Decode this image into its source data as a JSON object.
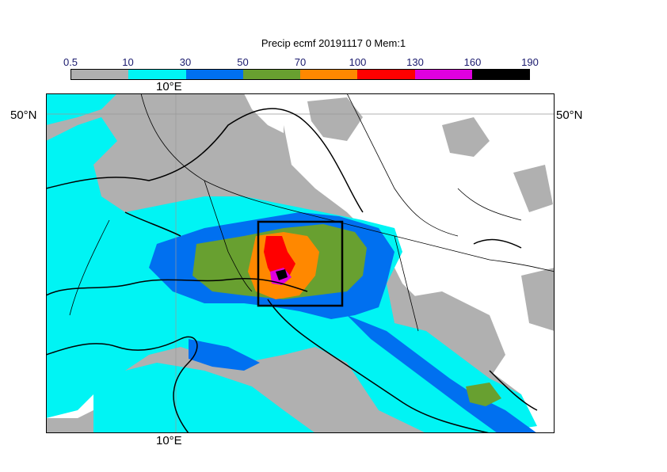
{
  "title": "Precip ecmf 20191117 0 Mem:1",
  "colorbar": {
    "ticks": [
      "0.5",
      "10",
      "30",
      "50",
      "70",
      "100",
      "130",
      "160",
      "190"
    ],
    "colors": [
      "#b0b0b0",
      "#00f4f4",
      "#0070f0",
      "#68a030",
      "#ff8800",
      "#ff0000",
      "#e000e0",
      "#000000"
    ]
  },
  "map_labels": {
    "lon_top": "10°E",
    "lon_bottom": "10°E",
    "lat_left": "50°N",
    "lat_right": "50°N"
  },
  "colors": {
    "land_light": "#ffffff",
    "ocean_dry": "#b0b0b0",
    "rain_10": "#00f4f4",
    "rain_30": "#0070f0",
    "rain_50": "#68a030",
    "rain_70": "#ff8800",
    "rain_100": "#ff0000",
    "rain_130": "#e000e0",
    "rain_160": "#000000"
  }
}
